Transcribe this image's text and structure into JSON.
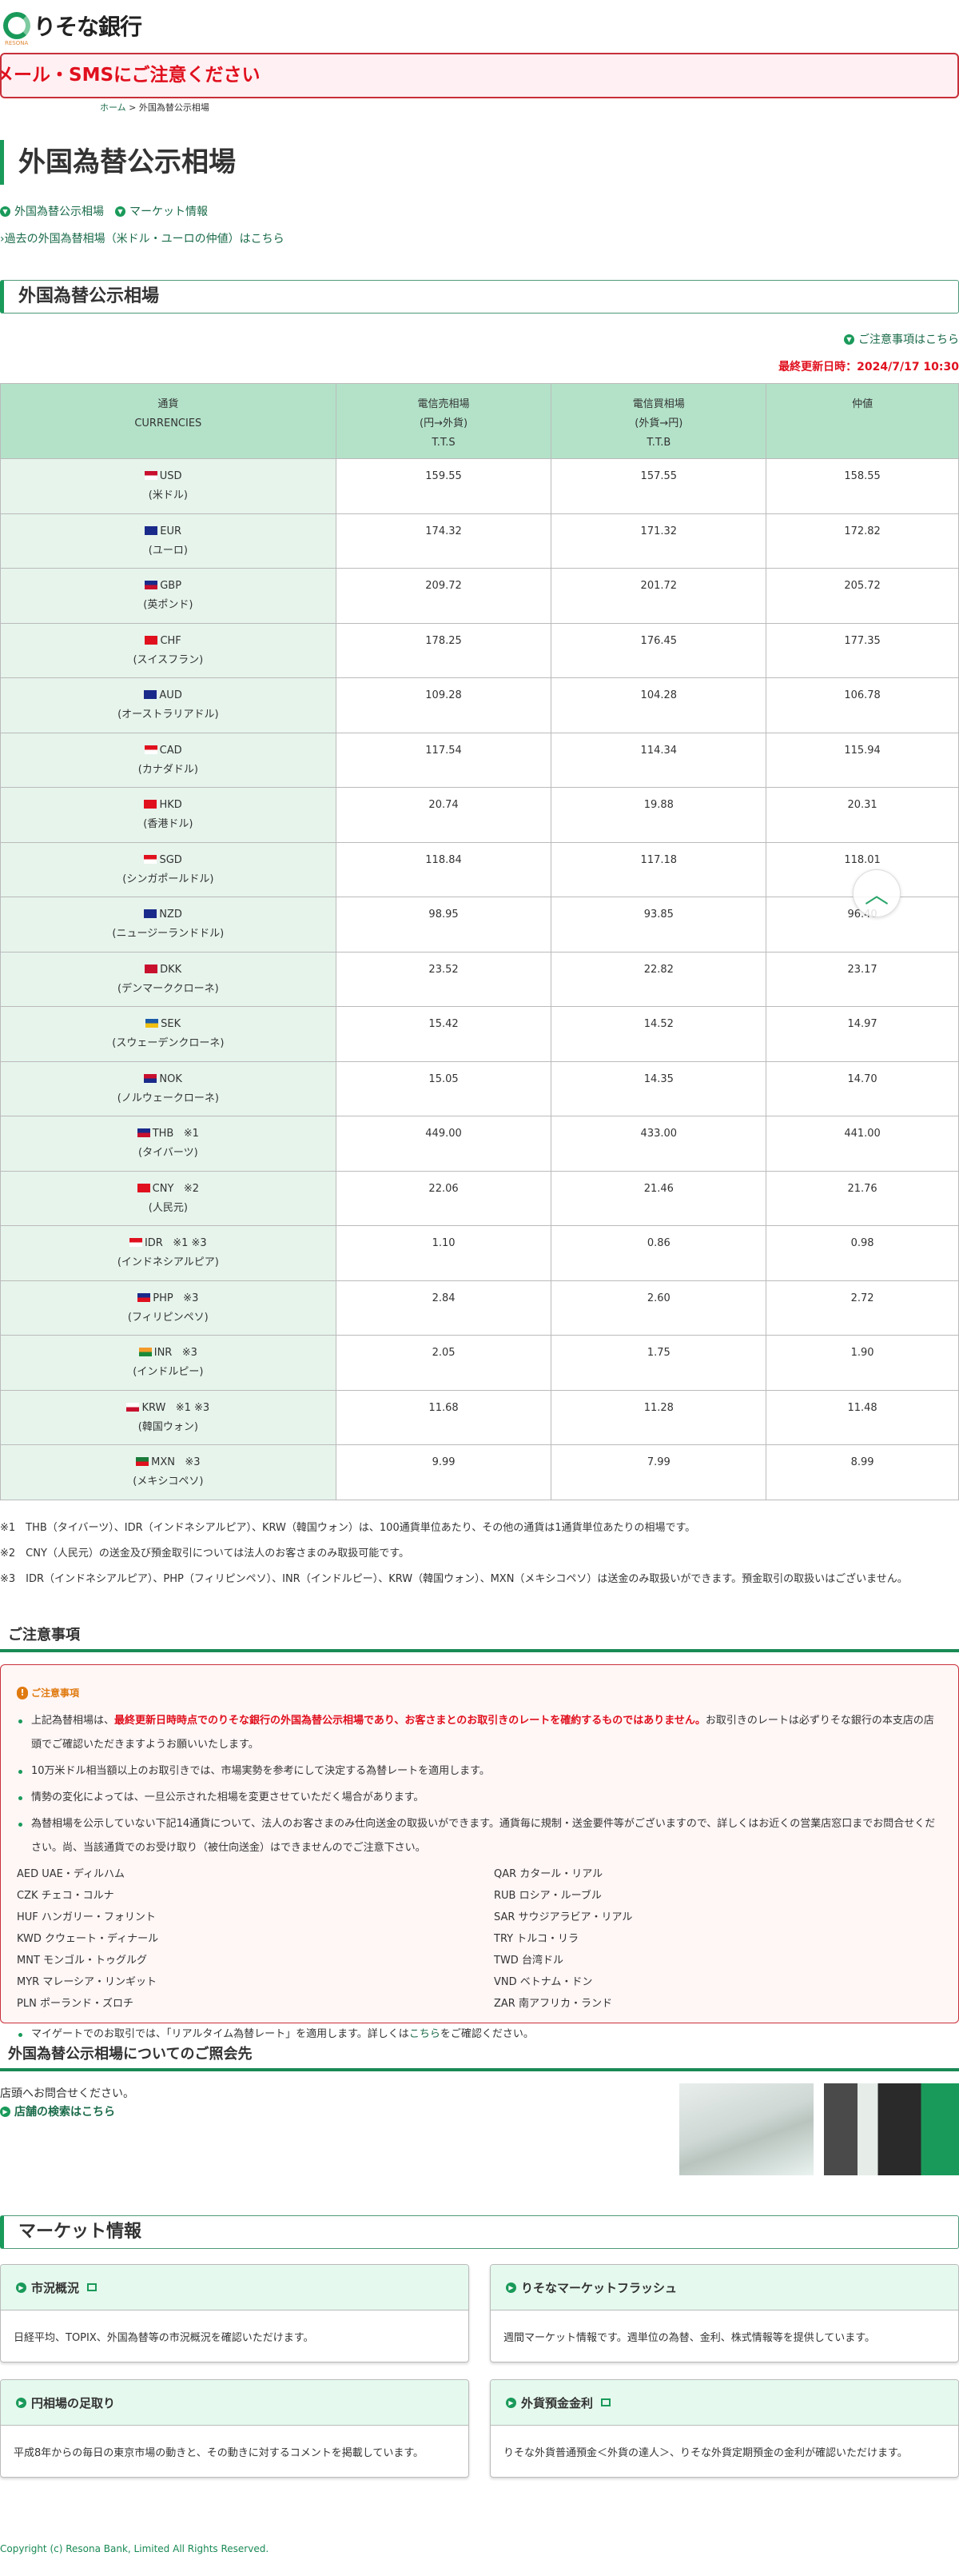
{
  "header": {
    "logo_text": "りそな銀行",
    "logo_sub": "RESONA",
    "alert": "メール・SMSにご注意ください"
  },
  "breadcrumb": {
    "home": "ホーム",
    "sep": ">",
    "current": "外国為替公示相場"
  },
  "page_title": "外国為替公示相場",
  "anchors": [
    "外国為替公示相場",
    "マーケット情報"
  ],
  "past_link": "過去の外国為替相場（米ドル・ユーロの仲値）はこちら",
  "rates_section": {
    "title": "外国為替公示相場",
    "caution_link": "ご注意事項はこちら",
    "updated": "最終更新日時：2024/7/17 10:30",
    "columns": [
      [
        "通貨",
        "CURRENCIES"
      ],
      [
        "電信売相場",
        "(円→外貨)",
        "T.T.S"
      ],
      [
        "電信買相場",
        "(外貨→円)",
        "T.T.B"
      ],
      [
        "仲値"
      ]
    ],
    "rows": [
      {
        "code": "USD",
        "note": "",
        "name": "(米ドル)",
        "tts": "159.55",
        "ttb": "157.55",
        "mid": "158.55",
        "flag": [
          "#c8102e",
          "#fff"
        ]
      },
      {
        "code": "EUR",
        "note": "",
        "name": "(ユーロ)",
        "tts": "174.32",
        "ttb": "171.32",
        "mid": "172.82",
        "flag": [
          "#1a2a8a",
          "#1a2a8a"
        ]
      },
      {
        "code": "GBP",
        "note": "",
        "name": "(英ポンド)",
        "tts": "209.72",
        "ttb": "201.72",
        "mid": "205.72",
        "flag": [
          "#1a2a8a",
          "#c8102e"
        ]
      },
      {
        "code": "CHF",
        "note": "",
        "name": "(スイスフラン)",
        "tts": "178.25",
        "ttb": "176.45",
        "mid": "177.35",
        "flag": [
          "#e0101e",
          "#e0101e"
        ]
      },
      {
        "code": "AUD",
        "note": "",
        "name": "(オーストラリアドル)",
        "tts": "109.28",
        "ttb": "104.28",
        "mid": "106.78",
        "flag": [
          "#1a2a8a",
          "#1a2a8a"
        ]
      },
      {
        "code": "CAD",
        "note": "",
        "name": "(カナダドル)",
        "tts": "117.54",
        "ttb": "114.34",
        "mid": "115.94",
        "flag": [
          "#e0101e",
          "#fff"
        ]
      },
      {
        "code": "HKD",
        "note": "",
        "name": "(香港ドル)",
        "tts": "20.74",
        "ttb": "19.88",
        "mid": "20.31",
        "flag": [
          "#e0101e",
          "#e0101e"
        ]
      },
      {
        "code": "SGD",
        "note": "",
        "name": "(シンガポールドル)",
        "tts": "118.84",
        "ttb": "117.18",
        "mid": "118.01",
        "flag": [
          "#e0101e",
          "#fff"
        ]
      },
      {
        "code": "NZD",
        "note": "",
        "name": "(ニュージーランドドル)",
        "tts": "98.95",
        "ttb": "93.85",
        "mid": "96.40",
        "flag": [
          "#1a2a8a",
          "#1a2a8a"
        ]
      },
      {
        "code": "DKK",
        "note": "",
        "name": "(デンマーククローネ)",
        "tts": "23.52",
        "ttb": "22.82",
        "mid": "23.17",
        "flag": [
          "#c8102e",
          "#c8102e"
        ]
      },
      {
        "code": "SEK",
        "note": "",
        "name": "(スウェーデンクローネ)",
        "tts": "15.42",
        "ttb": "14.52",
        "mid": "14.97",
        "flag": [
          "#1a5aa8",
          "#f0c010"
        ]
      },
      {
        "code": "NOK",
        "note": "",
        "name": "(ノルウェークローネ)",
        "tts": "15.05",
        "ttb": "14.35",
        "mid": "14.70",
        "flag": [
          "#c8102e",
          "#1a2a8a"
        ]
      },
      {
        "code": "THB",
        "note": "※1",
        "name": "(タイバーツ)",
        "tts": "449.00",
        "ttb": "433.00",
        "mid": "441.00",
        "flag": [
          "#1a2a8a",
          "#c8102e"
        ]
      },
      {
        "code": "CNY",
        "note": "※2",
        "name": "(人民元)",
        "tts": "22.06",
        "ttb": "21.46",
        "mid": "21.76",
        "flag": [
          "#e0101e",
          "#e0101e"
        ]
      },
      {
        "code": "IDR",
        "note": "※1 ※3",
        "name": "(インドネシアルピア)",
        "tts": "1.10",
        "ttb": "0.86",
        "mid": "0.98",
        "flag": [
          "#e0101e",
          "#fff"
        ]
      },
      {
        "code": "PHP",
        "note": "※3",
        "name": "(フィリピンペソ)",
        "tts": "2.84",
        "ttb": "2.60",
        "mid": "2.72",
        "flag": [
          "#1a2a8a",
          "#e0101e"
        ]
      },
      {
        "code": "INR",
        "note": "※3",
        "name": "(インドルピー)",
        "tts": "2.05",
        "ttb": "1.75",
        "mid": "1.90",
        "flag": [
          "#f39a2a",
          "#1a8a3a"
        ]
      },
      {
        "code": "KRW",
        "note": "※1 ※3",
        "name": "(韓国ウォン)",
        "tts": "11.68",
        "ttb": "11.28",
        "mid": "11.48",
        "flag": [
          "#fff",
          "#c8102e"
        ]
      },
      {
        "code": "MXN",
        "note": "※3",
        "name": "(メキシコペソ)",
        "tts": "9.99",
        "ttb": "7.99",
        "mid": "8.99",
        "flag": [
          "#1a7a3a",
          "#e0101e"
        ]
      }
    ],
    "notes": [
      "※1　THB（タイバーツ）、IDR（インドネシアルピア）、KRW（韓国ウォン）は、100通貨単位あたり、その他の通貨は1通貨単位あたりの相場です。",
      "※2　CNY（人民元）の送金及び預金取引については法人のお客さまのみ取扱可能です。",
      "※3　IDR（インドネシアルピア）、PHP（フィリピンペソ）、INR（インドルピー）、KRW（韓国ウォン）、MXN（メキシコペソ）は送金のみ取扱いができます。預金取引の取扱いはございません。"
    ]
  },
  "caution": {
    "heading": "ご注意事項",
    "box_title": "ご注意事項",
    "item1_pre": "上記為替相場は、",
    "item1_red": "最終更新日時時点でのりそな銀行の外国為替公示相場であり、お客さまとのお取引きのレートを確約するものではありません。",
    "item1_post": "お取引きのレートは必ずりそな銀行の本支店の店頭でご確認いただきますようお願いいたします。",
    "item2": "10万米ドル相当額以上のお取引きでは、市場実勢を参考にして決定する為替レートを適用します。",
    "item3": "情勢の変化によっては、一旦公示された相場を変更させていただく場合があります。",
    "item4": "為替相場を公示していない下記14通貨について、法人のお客さまのみ仕向送金の取扱いができます。通貨毎に規制・送金要件等がございますので、詳しくはお近くの営業店窓口までお問合せください。尚、当該通貨でのお受け取り（被仕向送金）はできませんのでご注意下さい。",
    "currencies": [
      "AED UAE・ディルハム",
      "QAR カタール・リアル",
      "CZK チェコ・コルナ",
      "RUB ロシア・ルーブル",
      "HUF ハンガリー・フォリント",
      "SAR サウジアラビア・リアル",
      "KWD クウェート・ディナール",
      "TRY トルコ・リラ",
      "MNT モンゴル・トゥグルグ",
      "TWD 台湾ドル",
      "MYR マレーシア・リンギット",
      "VND ベトナム・ドン",
      "PLN ポーランド・ズロチ",
      "ZAR 南アフリカ・ランド"
    ],
    "item5_pre": "マイゲートでのお取引では、「リアルタイム為替レート」を適用します。詳しくは",
    "item5_link": "こちら",
    "item5_post": "をご確認ください。"
  },
  "contact": {
    "heading": "外国為替公示相場についてのご照会先",
    "text": "店頭へお問合せください。",
    "link": "店舗の検索はこちら"
  },
  "market": {
    "title": "マーケット情報",
    "cards": [
      {
        "title": "市況概況",
        "external": true,
        "desc": "日経平均、TOPIX、外国為替等の市況概況を確認いただけます。"
      },
      {
        "title": "りそなマーケットフラッシュ",
        "external": false,
        "desc": "週間マーケット情報です。週単位の為替、金利、株式情報等を提供しています。"
      },
      {
        "title": "円相場の足取り",
        "external": false,
        "desc": "平成8年からの毎日の東京市場の動きと、その動きに対するコメントを掲載しています。"
      },
      {
        "title": "外貨預金金利",
        "external": true,
        "desc": "りそな外貨普通預金＜外貨の達人＞、りそな外貨定期預金の金利が確認いただけます。"
      }
    ]
  },
  "footer": {
    "copyright": "Copyright (c) Resona Bank, Limited All Rights Reserved."
  },
  "colors": {
    "brand": "#1a9a5a",
    "alert": "#e0101e",
    "header_bg": "#b3e2c9",
    "currency_bg": "#e6f4ec"
  }
}
